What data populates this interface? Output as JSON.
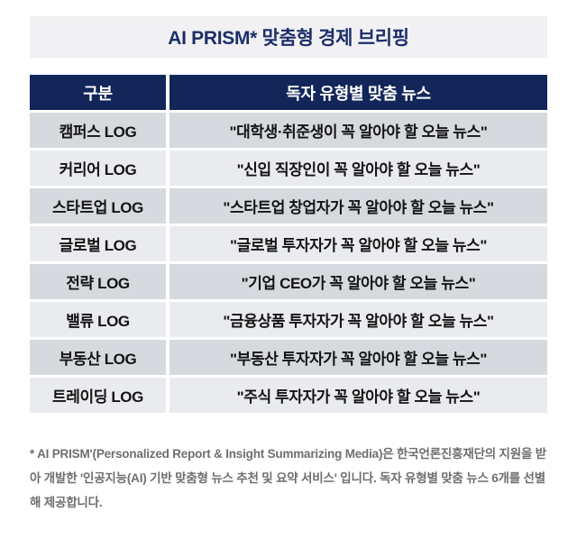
{
  "title": "AI PRISM* 맞춤형 경제 브리핑",
  "table": {
    "headers": {
      "category": "구분",
      "news": "독자 유형별 맞춤 뉴스"
    },
    "rows": [
      {
        "category": "캠퍼스 LOG",
        "news": "\"대학생·취준생이 꼭 알아야 할 오늘 뉴스\""
      },
      {
        "category": "커리어 LOG",
        "news": "\"신입 직장인이 꼭 알아야 할 오늘 뉴스\""
      },
      {
        "category": "스타트업 LOG",
        "news": "\"스타트업 창업자가 꼭 알아야 할 오늘 뉴스\""
      },
      {
        "category": "글로벌 LOG",
        "news": "\"글로벌 투자자가 꼭 알아야 할 오늘 뉴스\""
      },
      {
        "category": "전략 LOG",
        "news": "\"기업 CEO가 꼭 알아야 할 오늘 뉴스\""
      },
      {
        "category": "밸류 LOG",
        "news": "\"금융상품 투자자가 꼭 알아야 할 오늘 뉴스\""
      },
      {
        "category": "부동산 LOG",
        "news": "\"부동산 투자자가 꼭 알아야 할 오늘 뉴스\""
      },
      {
        "category": "트레이딩 LOG",
        "news": "\"주식 투자자가 꼭 알아야 할 오늘 뉴스\""
      }
    ]
  },
  "footnote": "* AI PRISM'(Personalized Report & Insight Summarizing Media)은 한국언론진흥재단의 지원을 받아 개발한 '인공지능(AI) 기반 맞춤형 뉴스 추천 및 요약 서비스' 입니다. 독자 유형별 맞춤 뉴스 6개를 선별해 제공합니다.",
  "colors": {
    "header_navy": "#12265a",
    "title_navy": "#1b2e68",
    "title_bar_bg": "#f1f1f3",
    "row_odd_bg": "#d6d9de",
    "row_even_bg": "#e9ebee",
    "footnote_gray": "#6e6e6e"
  }
}
